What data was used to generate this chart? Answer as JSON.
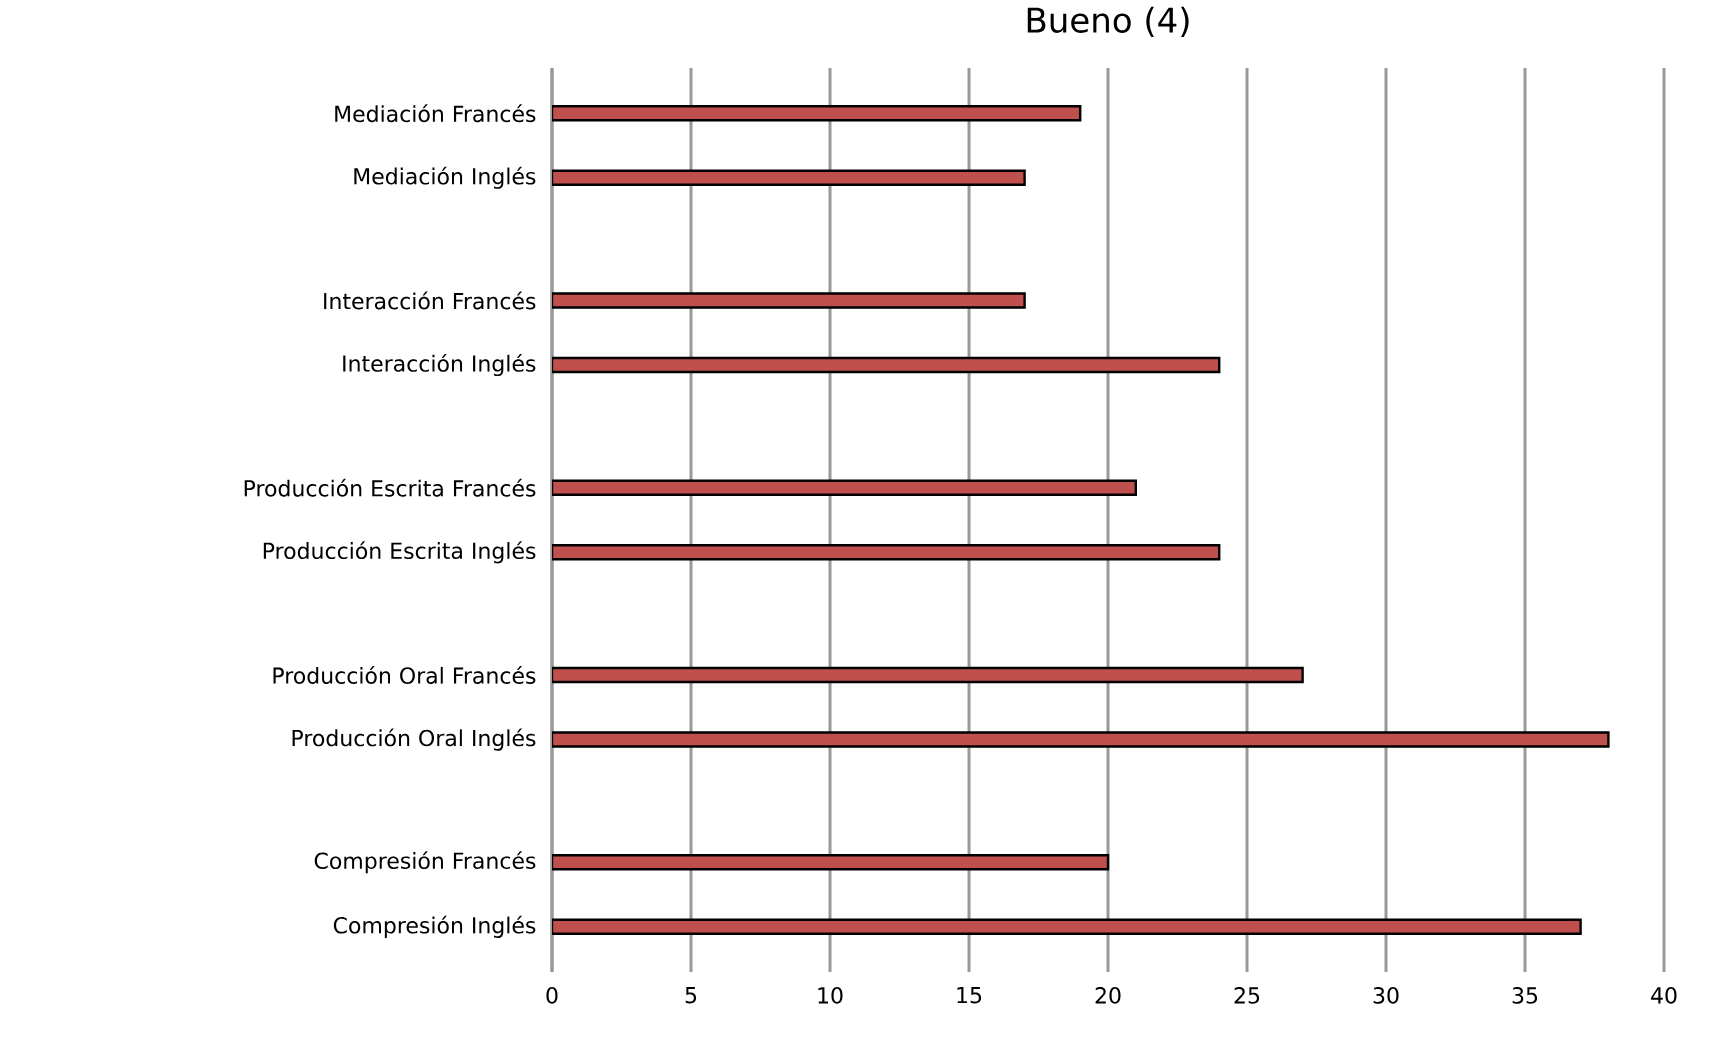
{
  "chart_data": {
    "type": "bar",
    "orientation": "horizontal",
    "title": "Bueno (4)",
    "categories": [
      "Mediación Francés",
      "Mediación  Inglés",
      "Interacción Francés",
      "Interacción Inglés",
      "Producción Escrita Francés",
      "Producción Escrita Inglés",
      "Producción Oral Francés",
      "Producción Oral Inglés",
      "Compresión Francés",
      "Compresión Inglés"
    ],
    "values": [
      19,
      17,
      17,
      24,
      21,
      24,
      27,
      38,
      20,
      37
    ],
    "color": "#c0504d",
    "xlim": [
      0,
      40
    ],
    "xticks": [
      0,
      5,
      10,
      15,
      20,
      25,
      30,
      35,
      40
    ],
    "grid": "x"
  }
}
